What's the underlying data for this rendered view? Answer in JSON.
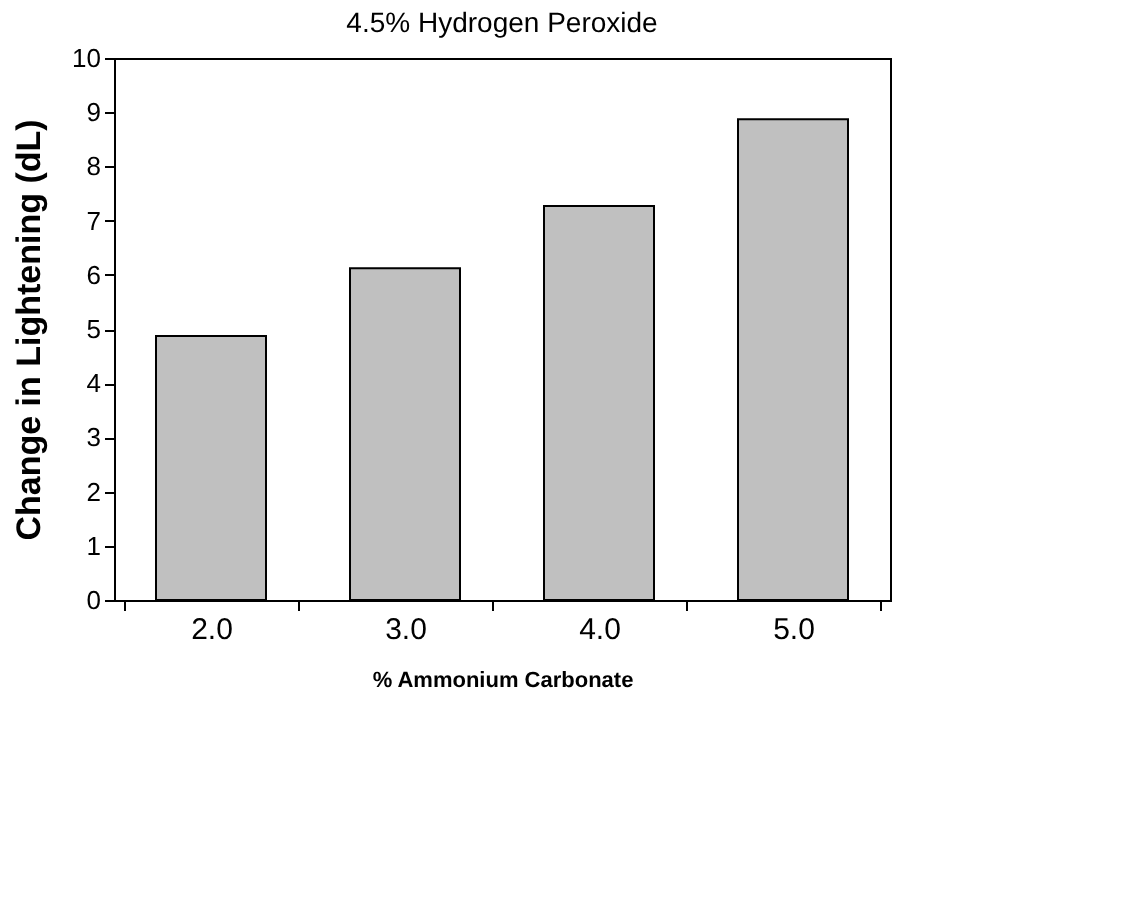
{
  "chart_data": {
    "type": "bar",
    "title": "4.5% Hydrogen Peroxide",
    "xlabel": "% Ammonium Carbonate",
    "ylabel": "Change in Lightening (dL)",
    "categories": [
      "2.0",
      "3.0",
      "4.0",
      "5.0"
    ],
    "values": [
      4.87,
      6.12,
      7.27,
      8.87
    ],
    "color": "#c0c0c0",
    "ylim": [
      0,
      10
    ],
    "yticks": [
      0,
      1,
      2,
      3,
      4,
      5,
      6,
      7,
      8,
      9,
      10
    ],
    "grid": false
  }
}
